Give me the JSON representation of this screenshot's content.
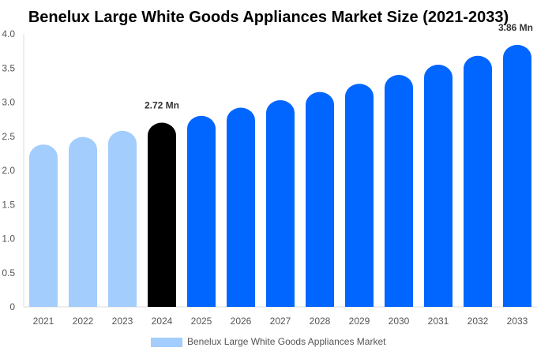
{
  "chart_data": {
    "type": "bar",
    "title": "Benelux Large White Goods Appliances Market Size (2021-2033)",
    "xlabel": "",
    "ylabel": "",
    "ylim": [
      0,
      4.0
    ],
    "yticks": [
      "0",
      "0.5",
      "1.0",
      "1.5",
      "2.0",
      "2.5",
      "3.0",
      "3.5",
      "4.0"
    ],
    "categories": [
      "2021",
      "2022",
      "2023",
      "2024",
      "2025",
      "2026",
      "2027",
      "2028",
      "2029",
      "2030",
      "2031",
      "2032",
      "2033"
    ],
    "series": [
      {
        "name": "Benelux Large White Goods Appliances Market",
        "values": [
          2.4,
          2.51,
          2.6,
          2.72,
          2.82,
          2.94,
          3.05,
          3.17,
          3.29,
          3.42,
          3.57,
          3.7,
          3.86
        ]
      }
    ],
    "bar_colors": [
      "#a3cdfc",
      "#a3cdfc",
      "#a3cdfc",
      "#000000",
      "#0066ff",
      "#0066ff",
      "#0066ff",
      "#0066ff",
      "#0066ff",
      "#0066ff",
      "#0066ff",
      "#0066ff",
      "#0066ff"
    ],
    "data_labels": [
      {
        "index": 3,
        "text": "2.72 Mn"
      },
      {
        "index": 12,
        "text": "3.86 Mn"
      }
    ],
    "legend": {
      "position": "bottom",
      "color": "#a3cdfc"
    },
    "grid": false
  }
}
